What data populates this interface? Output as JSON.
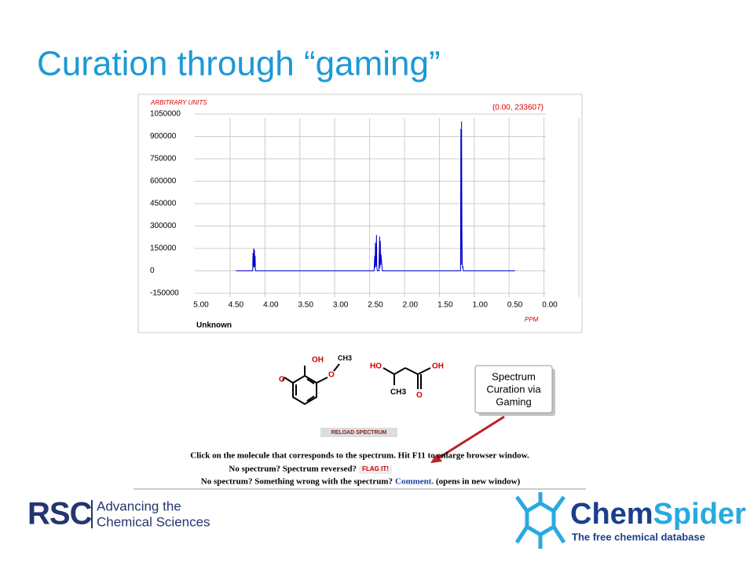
{
  "header": {
    "title": "Curation through “gaming”"
  },
  "chart_data": {
    "type": "line",
    "y_label": "ARBITRARY UNITS",
    "x_label": "PPM",
    "annotation": "(0.00, 233607)",
    "caption": "Unknown",
    "x": [
      4.5,
      4.26,
      4.255,
      4.25,
      4.245,
      4.24,
      4.235,
      4.23,
      4.225,
      4.22,
      4.2,
      2.52,
      2.51,
      2.505,
      2.5,
      2.49,
      2.485,
      2.48,
      2.47,
      2.45,
      2.44,
      2.435,
      2.43,
      2.425,
      2.42,
      2.4,
      1.3,
      1.28,
      1.275,
      1.27,
      1.265,
      1.26,
      1.255,
      1.25,
      1.245,
      1.24,
      1.22,
      0.5
    ],
    "series": [
      {
        "color": "#0000cc",
        "values": [
          0,
          0,
          120000,
          30000,
          150000,
          20000,
          140000,
          30000,
          100000,
          0,
          0,
          0,
          100000,
          20000,
          190000,
          30000,
          240000,
          20000,
          0,
          0,
          230000,
          20000,
          200000,
          40000,
          110000,
          0,
          0,
          0,
          950000,
          40000,
          1000000,
          280000,
          60000,
          20000,
          30000,
          0,
          0,
          0
        ]
      }
    ],
    "xlim": [
      5,
      0
    ],
    "ylim": [
      -150000,
      1050000
    ],
    "xticks": [
      {
        "value": 5,
        "label": "5.00"
      },
      {
        "value": 4.5,
        "label": "4.50"
      },
      {
        "value": 4,
        "label": "4.00"
      },
      {
        "value": 3.5,
        "label": "3.50"
      },
      {
        "value": 3,
        "label": "3.00"
      },
      {
        "value": 2.5,
        "label": "2.50"
      },
      {
        "value": 2,
        "label": "2.00"
      },
      {
        "value": 1.5,
        "label": "1.50"
      },
      {
        "value": 1,
        "label": "1.00"
      },
      {
        "value": 0.5,
        "label": "0.50"
      },
      {
        "value": 0,
        "label": "0.00"
      }
    ],
    "yticks": [
      1050000,
      900000,
      750000,
      600000,
      450000,
      300000,
      150000,
      0,
      -150000
    ],
    "grid": true
  },
  "molecules": {
    "a": [
      "OH",
      "CH3",
      "O"
    ],
    "b": [
      "HO",
      "OH",
      "CH3",
      "O"
    ]
  },
  "callout": [
    "Spectrum",
    "Curation via",
    "Gaming"
  ],
  "reload": "RELOAD SPECTRUM",
  "instructions": {
    "line1": "Click on the molecule that corresponds to the spectrum. Hit F11 to enlarge browser window.",
    "line2": "No spectrum? Spectrum reversed?",
    "flag": "FLAG IT!",
    "line3": "No spectrum? Something wrong with the spectrum?",
    "comment": "Comment.",
    "line3_end": "(opens in new window)"
  },
  "footer": {
    "rsc": "RSC",
    "rsc_line1": "Advancing the",
    "rsc_line2": "Chemical Sciences",
    "chem": "Chem",
    "spider": "Spider",
    "tagline": "The free chemical database"
  }
}
